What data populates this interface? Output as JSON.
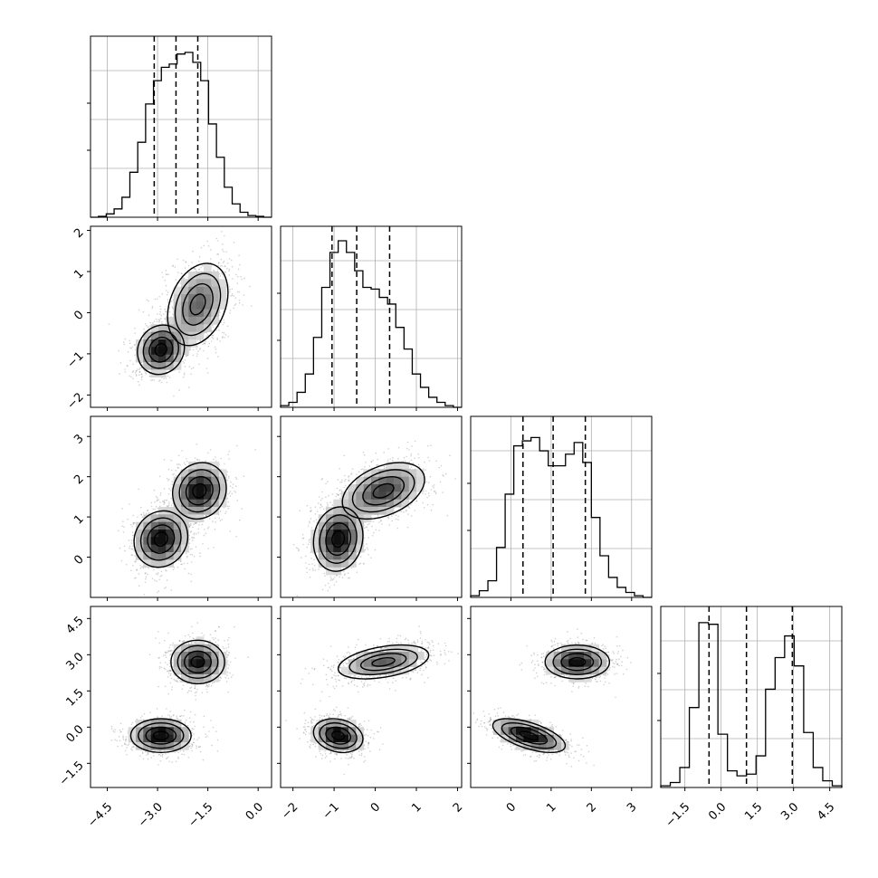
{
  "chart_data": {
    "type": "corner",
    "colors": {
      "hist": "#000000",
      "contour": "#000000",
      "points": "#7a7a7a",
      "grid": "#b0b0b0",
      "frame": "#000000"
    },
    "grid": true,
    "variables": [
      {
        "id": "x0",
        "range": [
          -5.0,
          0.4
        ],
        "ticks": [
          -4.5,
          -3.0,
          -1.5,
          0.0
        ],
        "tick_labels": [
          "−4.5",
          "−3.0",
          "−1.5",
          "0.0"
        ],
        "quantiles": [
          -3.1,
          -2.45,
          -1.8
        ],
        "histogram": [
          0,
          0.005,
          0.02,
          0.05,
          0.12,
          0.27,
          0.45,
          0.68,
          0.82,
          0.9,
          0.92,
          0.98,
          0.99,
          0.93,
          0.82,
          0.56,
          0.36,
          0.18,
          0.08,
          0.03,
          0.01,
          0.005,
          0
        ],
        "modes": [
          {
            "mean": -2.9,
            "sd": 0.45,
            "w": 0.45
          },
          {
            "mean": -1.8,
            "sd": 0.5,
            "w": 0.55
          }
        ]
      },
      {
        "id": "x1",
        "range": [
          -2.3,
          2.1
        ],
        "ticks": [
          -2,
          -1,
          0,
          1,
          2
        ],
        "tick_labels": [
          "−2",
          "−1",
          "0",
          "1",
          "2"
        ],
        "quantiles": [
          -1.05,
          -0.45,
          0.35
        ],
        "histogram": [
          0.01,
          0.03,
          0.09,
          0.2,
          0.42,
          0.72,
          0.93,
          1.0,
          0.93,
          0.82,
          0.72,
          0.71,
          0.66,
          0.62,
          0.48,
          0.35,
          0.2,
          0.12,
          0.06,
          0.03,
          0.01,
          0
        ],
        "modes": [
          {
            "mean": -0.9,
            "sd": 0.3,
            "w": 0.45
          },
          {
            "mean": 0.2,
            "sd": 0.5,
            "w": 0.55
          }
        ]
      },
      {
        "id": "x2",
        "range": [
          -1.0,
          3.5
        ],
        "ticks": [
          0,
          1,
          2,
          3
        ],
        "tick_labels": [
          "0",
          "1",
          "2",
          "3"
        ],
        "quantiles": [
          0.3,
          1.05,
          1.85
        ],
        "histogram": [
          0.01,
          0.04,
          0.1,
          0.3,
          0.62,
          0.91,
          0.94,
          0.96,
          0.88,
          0.79,
          0.79,
          0.86,
          0.93,
          0.81,
          0.48,
          0.25,
          0.12,
          0.06,
          0.03,
          0.01,
          0
        ],
        "modes": [
          {
            "mean": 0.45,
            "sd": 0.35,
            "w": 0.5
          },
          {
            "mean": 1.65,
            "sd": 0.35,
            "w": 0.5
          }
        ]
      },
      {
        "id": "x3",
        "range": [
          -2.5,
          5.0
        ],
        "ticks": [
          -1.5,
          0.0,
          1.5,
          3.0,
          4.5
        ],
        "tick_labels": [
          "−1.5",
          "0.0",
          "1.5",
          "3.0",
          "4.5"
        ],
        "quantiles": [
          -0.5,
          1.05,
          2.95
        ],
        "histogram": [
          0.01,
          0.03,
          0.12,
          0.48,
          0.99,
          0.98,
          0.32,
          0.1,
          0.07,
          0.08,
          0.19,
          0.59,
          0.78,
          0.91,
          0.73,
          0.33,
          0.12,
          0.04,
          0.01
        ],
        "modes": [
          {
            "mean": -0.35,
            "sd": 0.35,
            "w": 0.5
          },
          {
            "mean": 2.7,
            "sd": 0.45,
            "w": 0.5
          }
        ]
      }
    ],
    "panels_2d": [
      {
        "row": 1,
        "col": 0,
        "clusters": [
          {
            "mx": -2.9,
            "my": -0.9,
            "sx": 0.35,
            "sy": 0.3,
            "rho": 0.1,
            "w": 0.45
          },
          {
            "mx": -1.8,
            "my": 0.2,
            "sx": 0.45,
            "sy": 0.5,
            "rho": 0.3,
            "w": 0.55
          }
        ]
      },
      {
        "row": 2,
        "col": 0,
        "clusters": [
          {
            "mx": -2.9,
            "my": 0.45,
            "sx": 0.4,
            "sy": 0.35,
            "rho": 0.1,
            "w": 0.5
          },
          {
            "mx": -1.75,
            "my": 1.65,
            "sx": 0.4,
            "sy": 0.35,
            "rho": 0.1,
            "w": 0.5
          }
        ]
      },
      {
        "row": 2,
        "col": 1,
        "clusters": [
          {
            "mx": -0.9,
            "my": 0.45,
            "sx": 0.3,
            "sy": 0.4,
            "rho": 0.1,
            "w": 0.5
          },
          {
            "mx": 0.2,
            "my": 1.65,
            "sx": 0.5,
            "sy": 0.35,
            "rho": 0.4,
            "w": 0.5
          }
        ]
      },
      {
        "row": 3,
        "col": 0,
        "clusters": [
          {
            "mx": -2.9,
            "my": -0.35,
            "sx": 0.45,
            "sy": 0.35,
            "rho": 0.0,
            "w": 0.5
          },
          {
            "mx": -1.8,
            "my": 2.7,
            "sx": 0.4,
            "sy": 0.45,
            "rho": 0.0,
            "w": 0.5
          }
        ]
      },
      {
        "row": 3,
        "col": 1,
        "clusters": [
          {
            "mx": -0.9,
            "my": -0.35,
            "sx": 0.3,
            "sy": 0.35,
            "rho": -0.2,
            "w": 0.5
          },
          {
            "mx": 0.2,
            "my": 2.7,
            "sx": 0.55,
            "sy": 0.35,
            "rho": 0.4,
            "w": 0.5
          }
        ]
      },
      {
        "row": 3,
        "col": 2,
        "clusters": [
          {
            "mx": 0.45,
            "my": -0.35,
            "sx": 0.45,
            "sy": 0.35,
            "rho": -0.6,
            "w": 0.5
          },
          {
            "mx": 1.65,
            "my": 2.7,
            "sx": 0.4,
            "sy": 0.35,
            "rho": 0.0,
            "w": 0.5
          }
        ]
      }
    ]
  }
}
